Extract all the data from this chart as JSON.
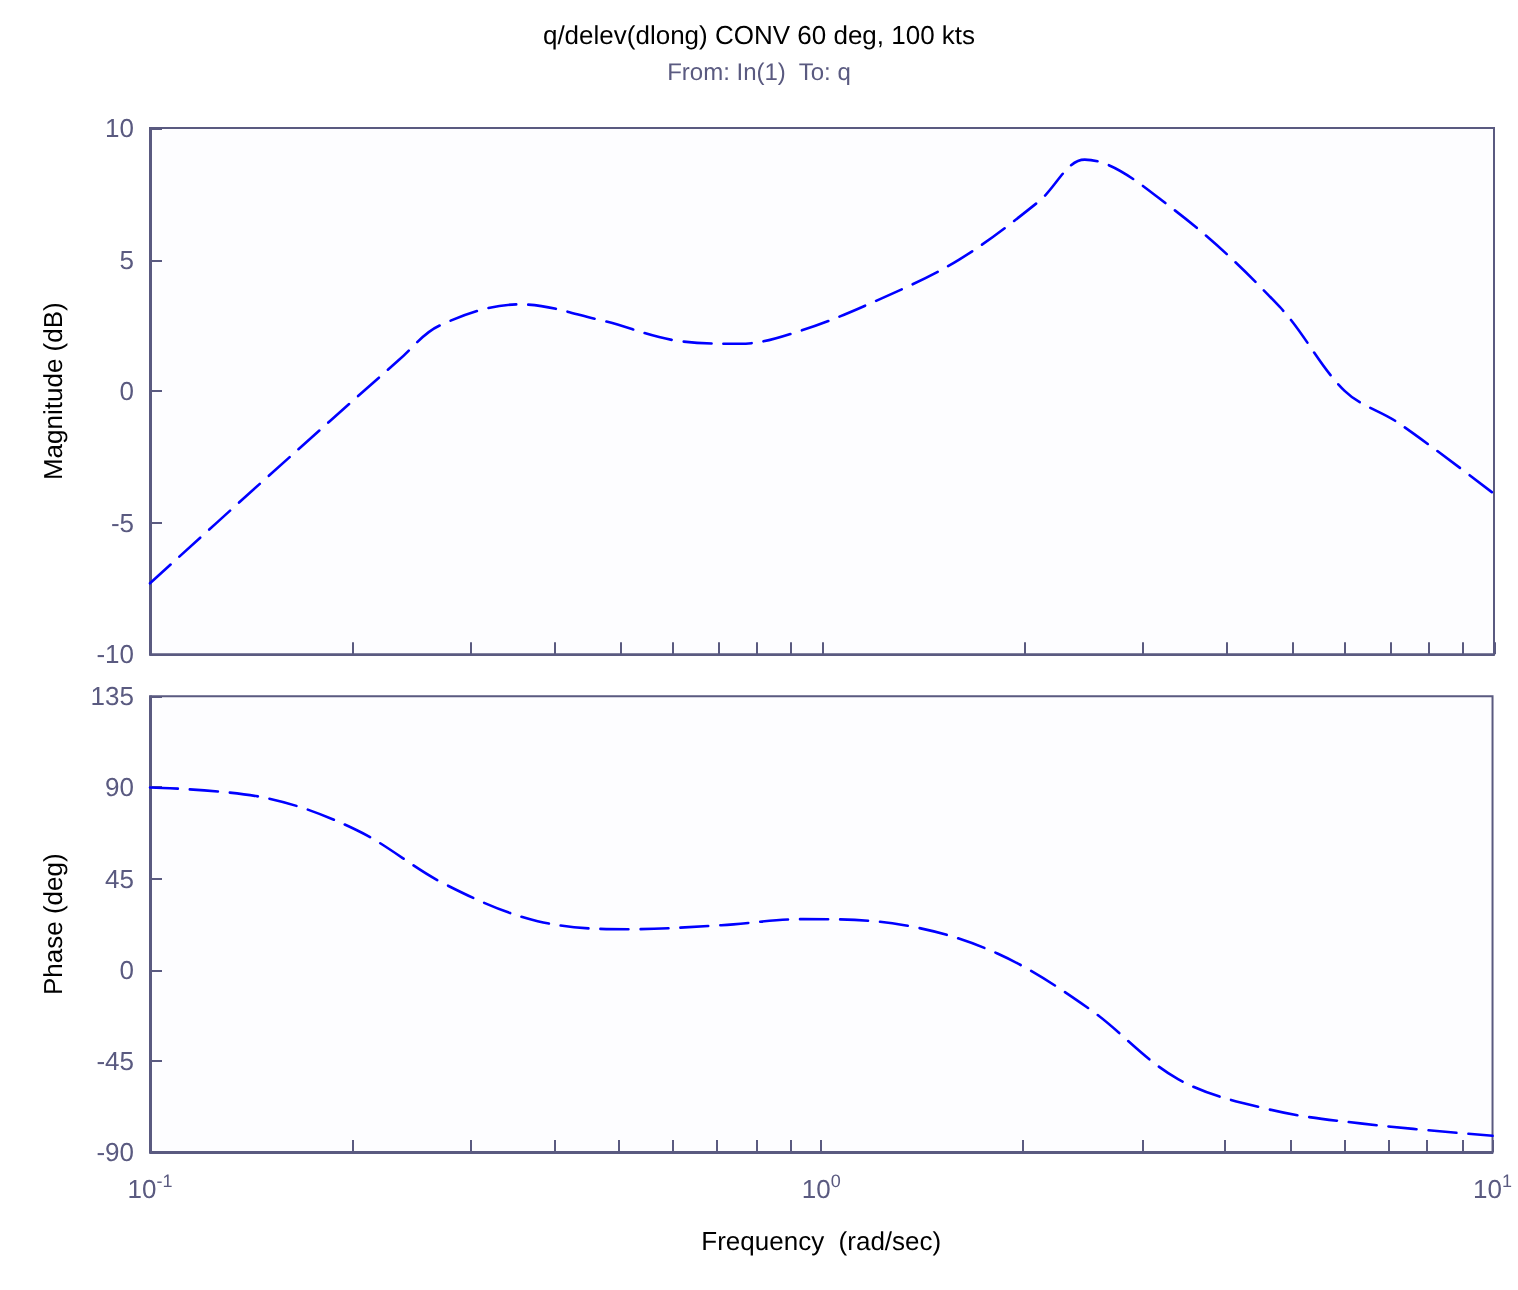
{
  "chart_data": [
    {
      "type": "line",
      "title": "q/delev(dlong) CONV 60 deg, 100 kts",
      "subtitle": "From: In(1)  To: q",
      "ylabel": "Magnitude (dB)",
      "log": "x",
      "grid": false,
      "line_style": "dashed",
      "marker": "none",
      "tick_labels": "y",
      "xlim": [
        0.1,
        10
      ],
      "ylim": [
        -10,
        10
      ],
      "yticks": [
        -10,
        -5,
        0,
        5,
        10
      ],
      "xticks": [
        {
          "value": 0.1,
          "label": null
        },
        {
          "value": 0.2,
          "label": null
        },
        {
          "value": 0.3,
          "label": null
        },
        {
          "value": 0.4,
          "label": null
        },
        {
          "value": 0.5,
          "label": null
        },
        {
          "value": 0.6,
          "label": null
        },
        {
          "value": 0.7,
          "label": null
        },
        {
          "value": 0.8,
          "label": null
        },
        {
          "value": 0.9,
          "label": null
        },
        {
          "value": 1,
          "label": null
        },
        {
          "value": 2,
          "label": null
        },
        {
          "value": 3,
          "label": null
        },
        {
          "value": 4,
          "label": null
        },
        {
          "value": 5,
          "label": null
        },
        {
          "value": 6,
          "label": null
        },
        {
          "value": 7,
          "label": null
        },
        {
          "value": 8,
          "label": null
        },
        {
          "value": 9,
          "label": null
        },
        {
          "value": 10,
          "label": null
        }
      ],
      "x": [
        0.1,
        0.146,
        0.235,
        0.27,
        0.355,
        0.468,
        0.615,
        0.755,
        0.93,
        1.22,
        1.6,
        2.1,
        2.46,
        3.3,
        4.8,
        6.0,
        7.2,
        10
      ],
      "series": [
        {
          "color": "#0000ff",
          "values": [
            -7.3,
            -3.5,
            1.2,
            2.5,
            3.3,
            2.7,
            1.9,
            1.8,
            2.3,
            3.5,
            5.0,
            7.2,
            8.8,
            7.0,
            3.2,
            0,
            -1.2,
            -3.9
          ]
        }
      ]
    },
    {
      "type": "line",
      "xlabel": "Frequency  (rad/sec)",
      "ylabel": "Phase (deg)",
      "log": "x",
      "grid": false,
      "line_style": "dashed",
      "marker": "none",
      "xlim": [
        0.1,
        10
      ],
      "ylim": [
        -90,
        135
      ],
      "yticks": [
        -90,
        -45,
        0,
        45,
        90,
        135
      ],
      "xticks": [
        {
          "value": 0.1,
          "label": "10$^{-1}$"
        },
        {
          "value": 0.2,
          "label": null
        },
        {
          "value": 0.3,
          "label": null
        },
        {
          "value": 0.4,
          "label": null
        },
        {
          "value": 0.5,
          "label": null
        },
        {
          "value": 0.6,
          "label": null
        },
        {
          "value": 0.7,
          "label": null
        },
        {
          "value": 0.8,
          "label": null
        },
        {
          "value": 0.9,
          "label": null
        },
        {
          "value": 1,
          "label": "10$^{0}$"
        },
        {
          "value": 2,
          "label": null
        },
        {
          "value": 3,
          "label": null
        },
        {
          "value": 4,
          "label": null
        },
        {
          "value": 5,
          "label": null
        },
        {
          "value": 6,
          "label": null
        },
        {
          "value": 7,
          "label": null
        },
        {
          "value": 8,
          "label": null
        },
        {
          "value": 9,
          "label": null
        },
        {
          "value": 10,
          "label": "10$^{1}$"
        }
      ],
      "x": [
        0.1,
        0.148,
        0.203,
        0.276,
        0.378,
        0.518,
        0.71,
        0.94,
        1.33,
        1.83,
        2.5,
        3.4,
        4.65,
        6.4,
        10
      ],
      "series": [
        {
          "color": "#0000ff",
          "values": [
            90,
            85,
            69,
            42,
            24,
            20,
            22,
            25,
            22,
            8,
            -19,
            -54,
            -69,
            -76,
            -82
          ]
        }
      ]
    }
  ]
}
